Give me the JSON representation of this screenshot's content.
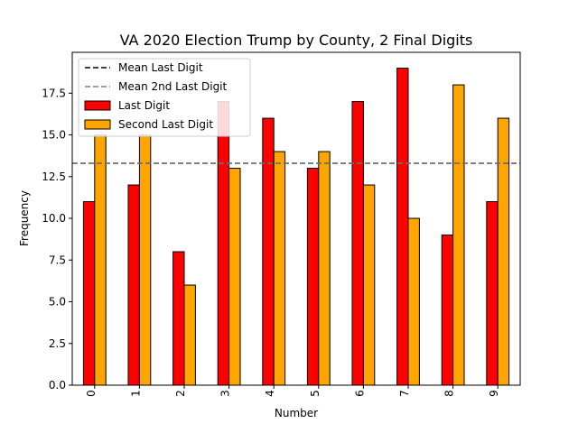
{
  "chart_data": {
    "type": "bar",
    "title": "VA 2020 Election Trump by County, 2 Final Digits",
    "xlabel": "Number",
    "ylabel": "Frequency",
    "categories": [
      "0",
      "1",
      "2",
      "3",
      "4",
      "5",
      "6",
      "7",
      "8",
      "9"
    ],
    "series": [
      {
        "name": "Last Digit",
        "color": "#ff0000",
        "values": [
          11,
          12,
          8,
          17,
          16,
          13,
          17,
          19,
          9,
          11
        ]
      },
      {
        "name": "Second Last Digit",
        "color": "#ffa500",
        "values": [
          15,
          15,
          6,
          13,
          14,
          14,
          12,
          10,
          18,
          16
        ]
      }
    ],
    "reference_lines": [
      {
        "name": "Mean Last Digit",
        "value": 13.3,
        "color": "#000000",
        "style": "dashed"
      },
      {
        "name": "Mean 2nd Last Digit",
        "value": 13.3,
        "color": "#808080",
        "style": "dashed"
      }
    ],
    "ylim": [
      0,
      19.95
    ],
    "yticks": [
      "0.0",
      "2.5",
      "5.0",
      "7.5",
      "10.0",
      "12.5",
      "15.0",
      "17.5"
    ],
    "ytick_values": [
      0,
      2.5,
      5,
      7.5,
      10,
      12.5,
      15,
      17.5
    ],
    "legend_position": "top-left",
    "grid": false
  }
}
